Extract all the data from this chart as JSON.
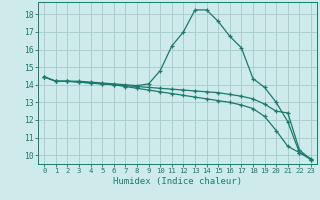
{
  "title": "",
  "xlabel": "Humidex (Indice chaleur)",
  "ylabel": "",
  "background_color": "#ceeaea",
  "grid_color": "#aacece",
  "line_color": "#1a7a6e",
  "xlim": [
    -0.5,
    23.5
  ],
  "ylim": [
    9.5,
    18.7
  ],
  "yticks": [
    10,
    11,
    12,
    13,
    14,
    15,
    16,
    17,
    18
  ],
  "xticks": [
    0,
    1,
    2,
    3,
    4,
    5,
    6,
    7,
    8,
    9,
    10,
    11,
    12,
    13,
    14,
    15,
    16,
    17,
    18,
    19,
    20,
    21,
    22,
    23
  ],
  "series": [
    {
      "x": [
        0,
        1,
        2,
        3,
        4,
        5,
        6,
        7,
        8,
        9,
        10,
        11,
        12,
        13,
        14,
        15,
        16,
        17,
        18,
        19,
        20,
        21,
        22,
        23
      ],
      "y": [
        14.45,
        14.2,
        14.2,
        14.2,
        14.15,
        14.1,
        14.05,
        14.0,
        13.95,
        14.05,
        14.8,
        16.2,
        17.0,
        18.25,
        18.25,
        17.6,
        16.75,
        16.1,
        14.35,
        13.85,
        13.0,
        11.9,
        10.15,
        9.8
      ]
    },
    {
      "x": [
        0,
        1,
        2,
        3,
        4,
        5,
        6,
        7,
        8,
        9,
        10,
        11,
        12,
        13,
        14,
        15,
        16,
        17,
        18,
        19,
        20,
        21,
        22,
        23
      ],
      "y": [
        14.45,
        14.2,
        14.2,
        14.15,
        14.1,
        14.05,
        14.0,
        13.95,
        13.9,
        13.85,
        13.8,
        13.75,
        13.7,
        13.65,
        13.6,
        13.55,
        13.45,
        13.35,
        13.2,
        12.9,
        12.5,
        12.4,
        10.3,
        9.75
      ]
    },
    {
      "x": [
        0,
        1,
        2,
        3,
        4,
        5,
        6,
        7,
        8,
        9,
        10,
        11,
        12,
        13,
        14,
        15,
        16,
        17,
        18,
        19,
        20,
        21,
        22,
        23
      ],
      "y": [
        14.45,
        14.2,
        14.2,
        14.15,
        14.1,
        14.05,
        14.0,
        13.9,
        13.8,
        13.7,
        13.6,
        13.5,
        13.4,
        13.3,
        13.2,
        13.1,
        13.0,
        12.85,
        12.65,
        12.2,
        11.4,
        10.5,
        10.15,
        9.75
      ]
    }
  ]
}
